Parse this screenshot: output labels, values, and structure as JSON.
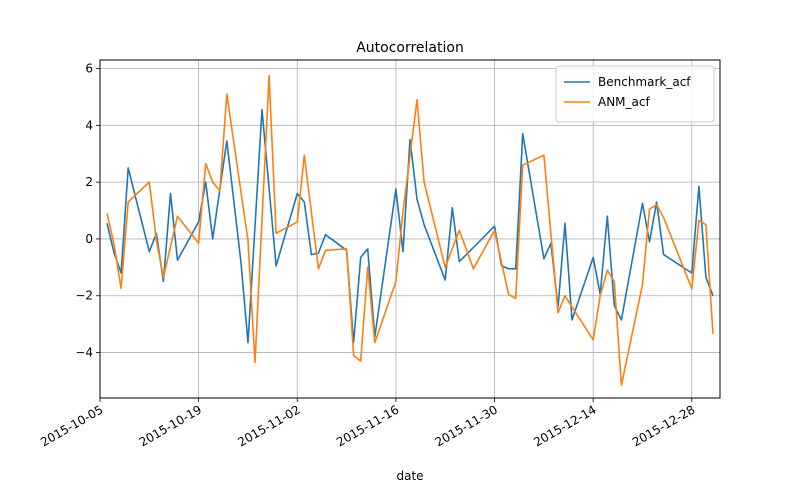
{
  "chart_data": {
    "type": "line",
    "title": "Autocorrelation",
    "xlabel": "date",
    "ylabel": "",
    "xlim": [
      "2015-10-05",
      "2016-01-01"
    ],
    "ylim": [
      -5.6,
      6.3
    ],
    "x_ticks": [
      "2015-10-05",
      "2015-10-19",
      "2015-11-02",
      "2015-11-16",
      "2015-11-30",
      "2015-12-14",
      "2015-12-28"
    ],
    "y_ticks": [
      -4,
      -2,
      0,
      2,
      4,
      6
    ],
    "grid": true,
    "legend": "top-right",
    "series": [
      {
        "name": "Benchmark_acf",
        "color": "#1f77b4",
        "points": [
          [
            "2015-10-06",
            0.55
          ],
          [
            "2015-10-07",
            -0.5
          ],
          [
            "2015-10-08",
            -1.2
          ],
          [
            "2015-10-09",
            2.5
          ],
          [
            "2015-10-12",
            -0.45
          ],
          [
            "2015-10-13",
            0.2
          ],
          [
            "2015-10-14",
            -1.5
          ],
          [
            "2015-10-15",
            1.6
          ],
          [
            "2015-10-16",
            -0.75
          ],
          [
            "2015-10-19",
            0.6
          ],
          [
            "2015-10-20",
            2.0
          ],
          [
            "2015-10-21",
            0.0
          ],
          [
            "2015-10-23",
            3.45
          ],
          [
            "2015-10-25",
            -0.8
          ],
          [
            "2015-10-26",
            -3.65
          ],
          [
            "2015-10-28",
            4.55
          ],
          [
            "2015-10-30",
            -0.95
          ],
          [
            "2015-11-02",
            1.6
          ],
          [
            "2015-11-03",
            1.3
          ],
          [
            "2015-11-04",
            -0.55
          ],
          [
            "2015-11-05",
            -0.5
          ],
          [
            "2015-11-06",
            0.15
          ],
          [
            "2015-11-09",
            -0.4
          ],
          [
            "2015-11-10",
            -3.65
          ],
          [
            "2015-11-11",
            -0.65
          ],
          [
            "2015-11-12",
            -0.35
          ],
          [
            "2015-11-13",
            -3.45
          ],
          [
            "2015-11-16",
            1.75
          ],
          [
            "2015-11-17",
            -0.45
          ],
          [
            "2015-11-18",
            3.5
          ],
          [
            "2015-11-19",
            1.4
          ],
          [
            "2015-11-20",
            0.5
          ],
          [
            "2015-11-23",
            -1.45
          ],
          [
            "2015-11-24",
            1.1
          ],
          [
            "2015-11-25",
            -0.8
          ],
          [
            "2015-11-26",
            -0.55
          ],
          [
            "2015-11-27",
            -0.3
          ],
          [
            "2015-11-30",
            0.45
          ],
          [
            "2015-12-01",
            -0.95
          ],
          [
            "2015-12-02",
            -1.05
          ],
          [
            "2015-12-03",
            -1.05
          ],
          [
            "2015-12-04",
            3.7
          ],
          [
            "2015-12-07",
            -0.7
          ],
          [
            "2015-12-08",
            -0.15
          ],
          [
            "2015-12-09",
            -2.4
          ],
          [
            "2015-12-10",
            0.55
          ],
          [
            "2015-12-11",
            -2.85
          ],
          [
            "2015-12-14",
            -0.65
          ],
          [
            "2015-12-15",
            -1.95
          ],
          [
            "2015-12-16",
            0.8
          ],
          [
            "2015-12-17",
            -2.35
          ],
          [
            "2015-12-18",
            -2.85
          ],
          [
            "2015-12-21",
            1.25
          ],
          [
            "2015-12-22",
            -0.1
          ],
          [
            "2015-12-23",
            1.3
          ],
          [
            "2015-12-24",
            -0.55
          ],
          [
            "2015-12-28",
            -1.2
          ],
          [
            "2015-12-29",
            1.85
          ],
          [
            "2015-12-30",
            -1.35
          ],
          [
            "2015-12-31",
            -2.0
          ]
        ]
      },
      {
        "name": "ANM_acf",
        "color": "#ff7f0e",
        "points": [
          [
            "2015-10-06",
            0.9
          ],
          [
            "2015-10-07",
            -0.2
          ],
          [
            "2015-10-08",
            -1.75
          ],
          [
            "2015-10-09",
            1.3
          ],
          [
            "2015-10-12",
            2.0
          ],
          [
            "2015-10-13",
            -0.05
          ],
          [
            "2015-10-14",
            -1.35
          ],
          [
            "2015-10-16",
            0.8
          ],
          [
            "2015-10-19",
            -0.15
          ],
          [
            "2015-10-20",
            2.65
          ],
          [
            "2015-10-21",
            2.0
          ],
          [
            "2015-10-22",
            1.7
          ],
          [
            "2015-10-23",
            5.1
          ],
          [
            "2015-10-26",
            -0.05
          ],
          [
            "2015-10-27",
            -4.35
          ],
          [
            "2015-10-29",
            5.75
          ],
          [
            "2015-10-30",
            0.2
          ],
          [
            "2015-11-02",
            0.6
          ],
          [
            "2015-11-03",
            2.95
          ],
          [
            "2015-11-05",
            -1.05
          ],
          [
            "2015-11-06",
            -0.4
          ],
          [
            "2015-11-09",
            -0.35
          ],
          [
            "2015-11-10",
            -4.1
          ],
          [
            "2015-11-11",
            -4.3
          ],
          [
            "2015-11-12",
            -1.0
          ],
          [
            "2015-11-13",
            -3.65
          ],
          [
            "2015-11-16",
            -1.5
          ],
          [
            "2015-11-17",
            0.95
          ],
          [
            "2015-11-19",
            4.9
          ],
          [
            "2015-11-20",
            2.0
          ],
          [
            "2015-11-23",
            -1.0
          ],
          [
            "2015-11-25",
            0.3
          ],
          [
            "2015-11-27",
            -1.05
          ],
          [
            "2015-11-30",
            0.3
          ],
          [
            "2015-12-02",
            -1.95
          ],
          [
            "2015-12-03",
            -2.1
          ],
          [
            "2015-12-04",
            2.6
          ],
          [
            "2015-12-07",
            2.95
          ],
          [
            "2015-12-09",
            -2.6
          ],
          [
            "2015-12-10",
            -2.0
          ],
          [
            "2015-12-11",
            -2.4
          ],
          [
            "2015-12-14",
            -3.55
          ],
          [
            "2015-12-15",
            -2.0
          ],
          [
            "2015-12-16",
            -1.1
          ],
          [
            "2015-12-17",
            -1.5
          ],
          [
            "2015-12-18",
            -5.15
          ],
          [
            "2015-12-21",
            -1.6
          ],
          [
            "2015-12-22",
            1.05
          ],
          [
            "2015-12-23",
            1.2
          ],
          [
            "2015-12-24",
            0.75
          ],
          [
            "2015-12-28",
            -1.75
          ],
          [
            "2015-12-29",
            0.65
          ],
          [
            "2015-12-30",
            0.5
          ],
          [
            "2015-12-31",
            -3.35
          ]
        ]
      }
    ]
  }
}
